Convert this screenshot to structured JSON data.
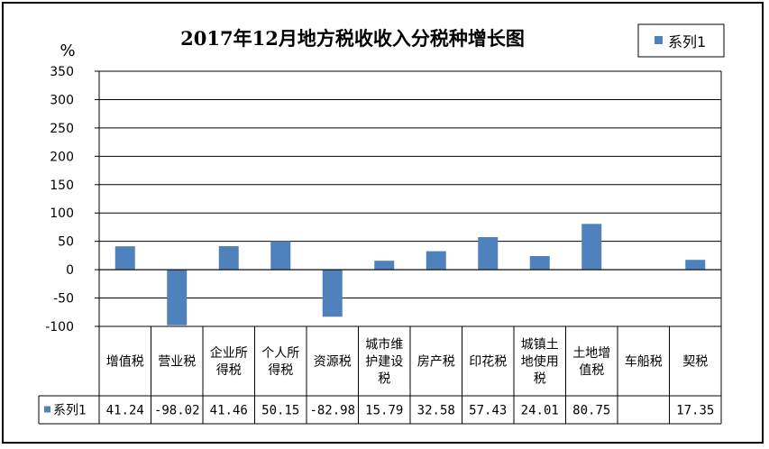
{
  "chart_data": {
    "type": "bar",
    "title": "2017年12月地方税收收入分税种增长图",
    "ylabel": "%",
    "ylim": [
      -100,
      350
    ],
    "yticks": [
      350,
      300,
      250,
      200,
      150,
      100,
      50,
      0,
      -50,
      -100
    ],
    "grid": true,
    "legend_position": "top-right",
    "categories": [
      [
        "增值税"
      ],
      [
        "营业税"
      ],
      [
        "企业所",
        "得税"
      ],
      [
        "个人所",
        "得税"
      ],
      [
        "资源税"
      ],
      [
        "城市维",
        "护建设",
        "税"
      ],
      [
        "房产税"
      ],
      [
        "印花税"
      ],
      [
        "城镇土",
        "地使用",
        "税"
      ],
      [
        "土地增",
        "值税"
      ],
      [
        "车船税"
      ],
      [
        "契税"
      ]
    ],
    "series": [
      {
        "name": "系列1",
        "color": "#4F81BD",
        "values": [
          41.24,
          -98.02,
          41.46,
          50.15,
          -82.98,
          15.79,
          32.58,
          57.43,
          24.01,
          80.75,
          null,
          17.35
        ],
        "labels": [
          "41.24",
          "-98.02",
          "41.46",
          "50.15",
          "-82.98",
          "15.79",
          "32.58",
          "57.43",
          "24.01",
          "80.75",
          "",
          "17.35"
        ]
      }
    ],
    "data_table": true
  }
}
